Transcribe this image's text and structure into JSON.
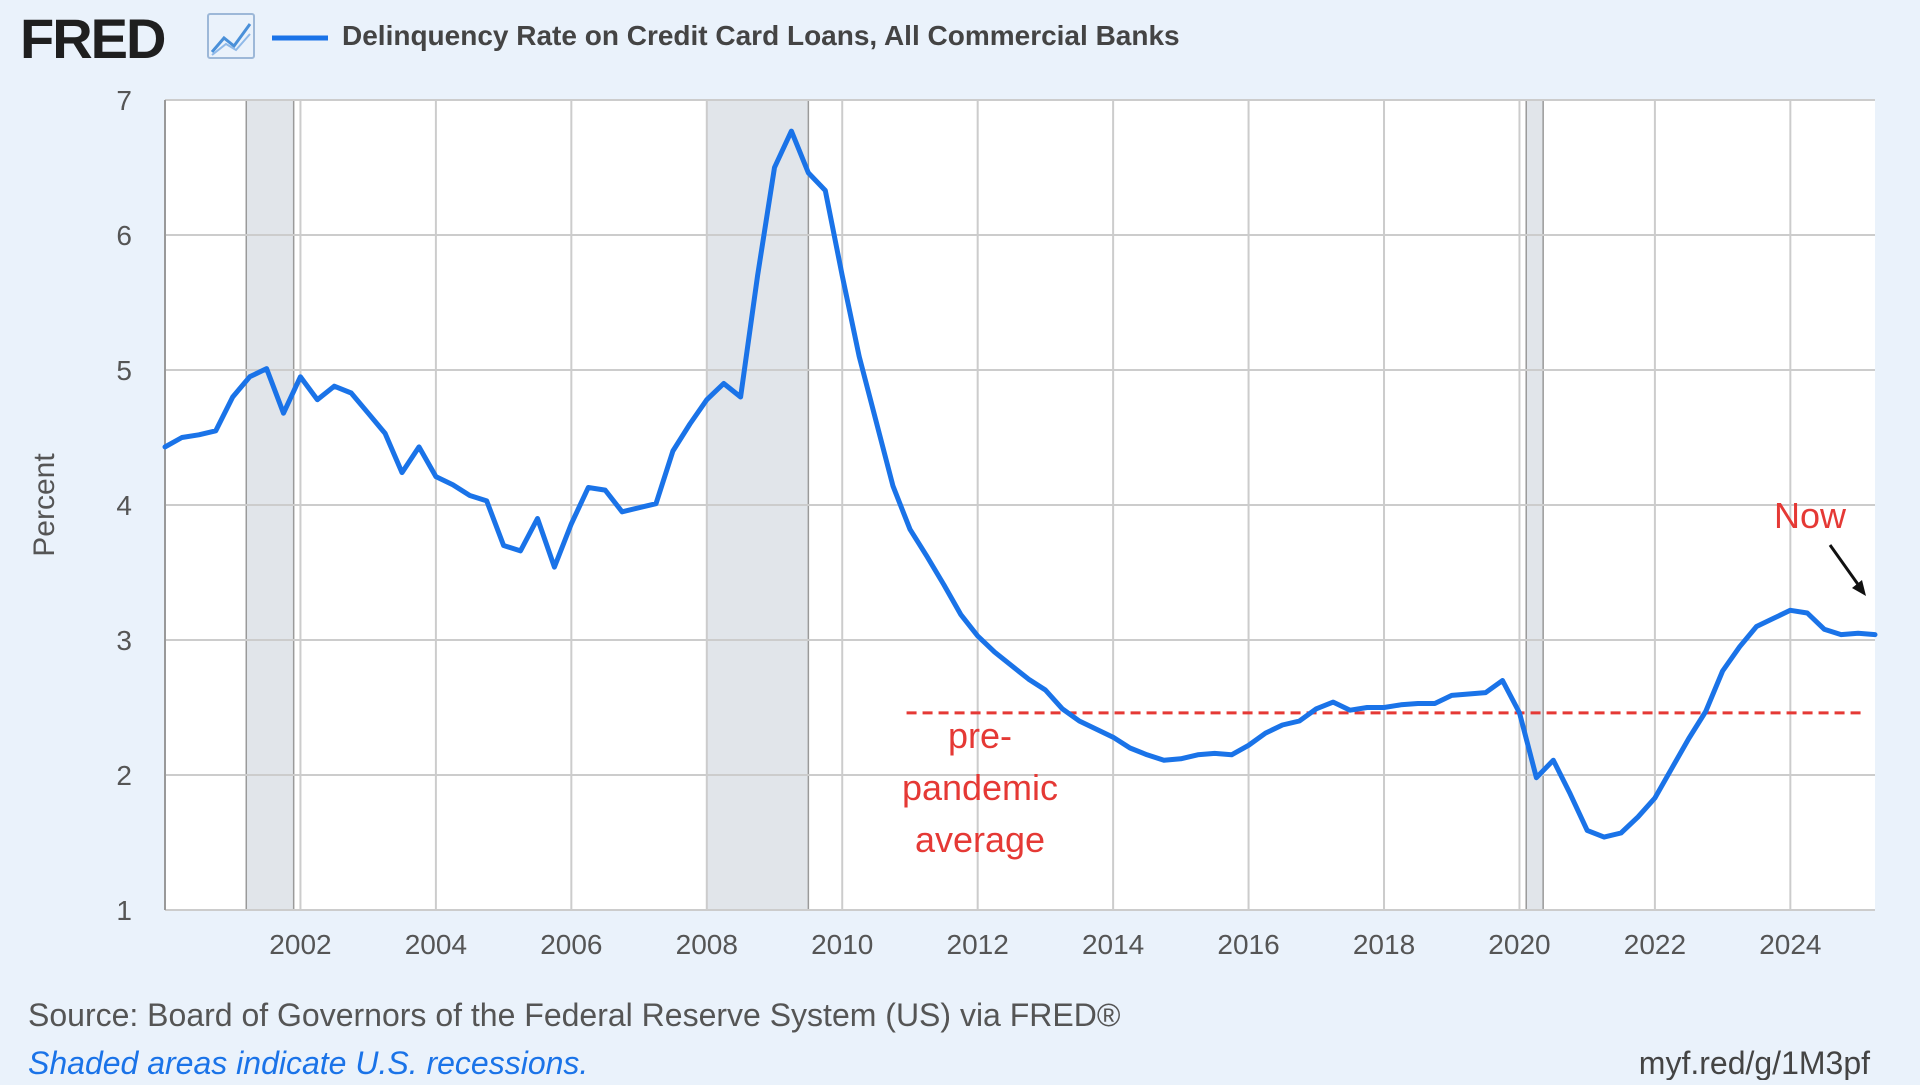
{
  "header": {
    "logo_text": "FRED",
    "series_legend": "Delinquency Rate on Credit Card Loans, All Commercial Banks"
  },
  "footer": {
    "source": "Source: Board of Governors of the Federal Reserve System (US) via FRED®",
    "recession_note": "Shaded areas indicate U.S. recessions.",
    "short_url": "myf.red/g/1M3pf"
  },
  "annotations": {
    "now_label": "Now",
    "avg_line1": "pre-",
    "avg_line2": "pandemic",
    "avg_line3": "average"
  },
  "colors": {
    "background": "#eaf2fb",
    "plot_background": "#ffffff",
    "series": "#1a73e8",
    "recession_shade": "#e1e5ea",
    "annotation_red": "#e53935",
    "grid": "#cccccc",
    "text": "#555555",
    "logo": "#1f1f1f"
  },
  "chart_data": {
    "type": "line",
    "title": "",
    "xlabel": "",
    "ylabel": "Percent",
    "xlim": [
      2000.0,
      2025.25
    ],
    "ylim": [
      1,
      7
    ],
    "yticks": [
      1,
      2,
      3,
      4,
      5,
      6,
      7
    ],
    "xticks": [
      2002,
      2004,
      2006,
      2008,
      2010,
      2012,
      2014,
      2016,
      2018,
      2020,
      2022,
      2024
    ],
    "grid": true,
    "legend": "top-left",
    "series": [
      {
        "name": "Delinquency Rate on Credit Card Loans, All Commercial Banks",
        "x": [
          2000.0,
          2000.25,
          2000.5,
          2000.75,
          2001.0,
          2001.25,
          2001.5,
          2001.75,
          2002.0,
          2002.25,
          2002.5,
          2002.75,
          2003.0,
          2003.25,
          2003.5,
          2003.75,
          2004.0,
          2004.25,
          2004.5,
          2004.75,
          2005.0,
          2005.25,
          2005.5,
          2005.75,
          2006.0,
          2006.25,
          2006.5,
          2006.75,
          2007.0,
          2007.25,
          2007.5,
          2007.75,
          2008.0,
          2008.25,
          2008.5,
          2008.75,
          2009.0,
          2009.25,
          2009.5,
          2009.75,
          2010.0,
          2010.25,
          2010.5,
          2010.75,
          2011.0,
          2011.25,
          2011.5,
          2011.75,
          2012.0,
          2012.25,
          2012.5,
          2012.75,
          2013.0,
          2013.25,
          2013.5,
          2013.75,
          2014.0,
          2014.25,
          2014.5,
          2014.75,
          2015.0,
          2015.25,
          2015.5,
          2015.75,
          2016.0,
          2016.25,
          2016.5,
          2016.75,
          2017.0,
          2017.25,
          2017.5,
          2017.75,
          2018.0,
          2018.25,
          2018.5,
          2018.75,
          2019.0,
          2019.25,
          2019.5,
          2019.75,
          2020.0,
          2020.25,
          2020.5,
          2020.75,
          2021.0,
          2021.25,
          2021.5,
          2021.75,
          2022.0,
          2022.25,
          2022.5,
          2022.75,
          2023.0,
          2023.25,
          2023.5,
          2023.75,
          2024.0,
          2024.25,
          2024.5,
          2024.75,
          2025.0,
          2025.25
        ],
        "values": [
          4.43,
          4.5,
          4.52,
          4.55,
          4.8,
          4.95,
          5.01,
          4.68,
          4.95,
          4.78,
          4.88,
          4.83,
          4.68,
          4.53,
          4.24,
          4.43,
          4.21,
          4.15,
          4.07,
          4.03,
          3.7,
          3.66,
          3.9,
          3.54,
          3.86,
          4.13,
          4.11,
          3.95,
          3.98,
          4.01,
          4.4,
          4.6,
          4.78,
          4.9,
          4.8,
          5.7,
          6.5,
          6.77,
          6.46,
          6.33,
          5.7,
          5.1,
          4.62,
          4.14,
          3.82,
          3.62,
          3.41,
          3.19,
          3.03,
          2.91,
          2.81,
          2.71,
          2.63,
          2.49,
          2.4,
          2.34,
          2.28,
          2.2,
          2.15,
          2.11,
          2.12,
          2.15,
          2.16,
          2.15,
          2.22,
          2.31,
          2.37,
          2.4,
          2.49,
          2.54,
          2.48,
          2.5,
          2.5,
          2.52,
          2.53,
          2.53,
          2.59,
          2.6,
          2.61,
          2.7,
          2.46,
          1.98,
          2.11,
          1.86,
          1.59,
          1.54,
          1.57,
          1.69,
          1.83,
          2.05,
          2.27,
          2.47,
          2.77,
          2.95,
          3.1,
          3.16,
          3.22,
          3.2,
          3.08,
          3.04,
          3.05,
          3.04
        ]
      }
    ],
    "recessions": [
      [
        2001.2,
        2001.9
      ],
      [
        2008.0,
        2009.5
      ],
      [
        2020.1,
        2020.35
      ]
    ],
    "reference_line": {
      "label": "pre-pandemic average",
      "y": 2.46,
      "x_from": 2010.95,
      "x_to": 2025.1
    },
    "annotations": [
      {
        "text": "Now",
        "x": 2025.25,
        "y": 3.04
      },
      {
        "text": "pre-pandemic average",
        "x": 2011.0,
        "y": 2.0
      }
    ]
  }
}
